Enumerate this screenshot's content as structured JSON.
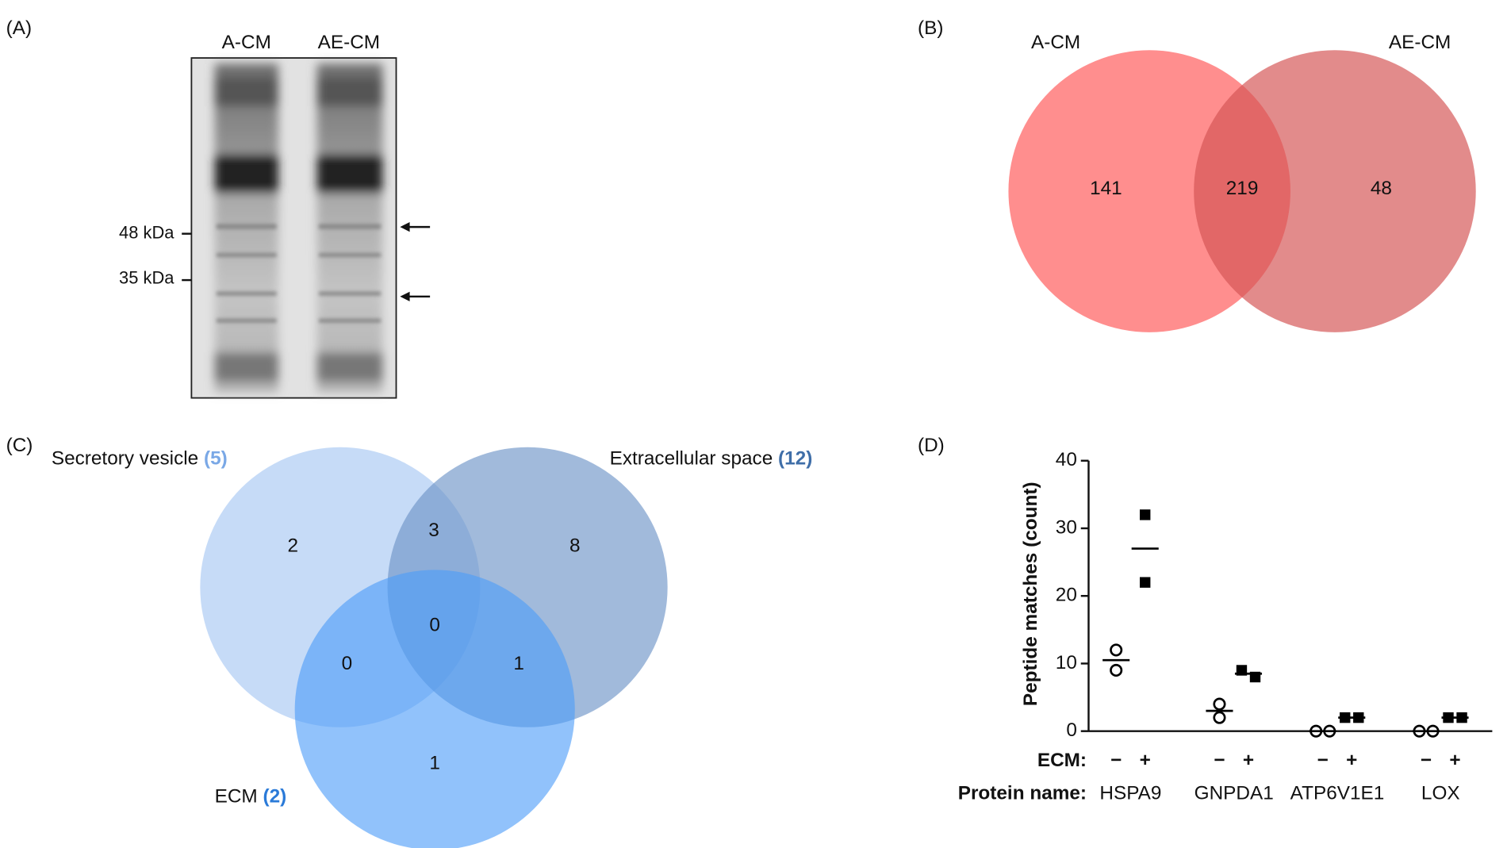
{
  "panel_a": {
    "letter": "(A)",
    "lanes": [
      "A-CM",
      "AE-CM"
    ],
    "markers": [
      "48 kDa",
      "35 kDa"
    ]
  },
  "panel_b": {
    "letter": "(B)",
    "sets": [
      "A-CM",
      "AE-CM"
    ],
    "regions": {
      "a_only": "141",
      "both": "219",
      "ae_only": "48"
    }
  },
  "panel_c": {
    "letter": "(C)",
    "sets": [
      {
        "name": "Secretory vesicle",
        "count": "(5)"
      },
      {
        "name": "Extracellular space",
        "count": "(12)"
      },
      {
        "name": "ECM",
        "count": "(2)"
      }
    ],
    "regions": {
      "sv_only": "2",
      "sv_es": "3",
      "es_only": "8",
      "sv_ecm": "0",
      "all": "0",
      "es_ecm": "1",
      "ecm_only": "1"
    }
  },
  "chart_data": {
    "type": "dot",
    "letter": "(D)",
    "y_label": "Peptide  matches (count)",
    "condition_label": "ECM:",
    "category_label": "Protein name:",
    "categories": [
      "HSPA9",
      "GNPDA1",
      "ATP6V1E1",
      "LOX"
    ],
    "ylim": [
      0,
      40
    ],
    "yticks": [
      0,
      10,
      20,
      30,
      40
    ],
    "series": [
      {
        "name": "−",
        "marker": "circle",
        "color": "#000000",
        "values": [
          [
            12,
            9
          ],
          [
            4,
            2
          ],
          [
            0,
            0
          ],
          [
            0,
            0
          ]
        ],
        "means": [
          10.5,
          3,
          0,
          0
        ]
      },
      {
        "name": "+",
        "marker": "square",
        "color": "#000000",
        "values": [
          [
            32,
            22
          ],
          [
            9,
            8
          ],
          [
            2,
            2
          ],
          [
            2,
            2
          ]
        ],
        "means": [
          27,
          8.5,
          2,
          2
        ]
      }
    ]
  }
}
